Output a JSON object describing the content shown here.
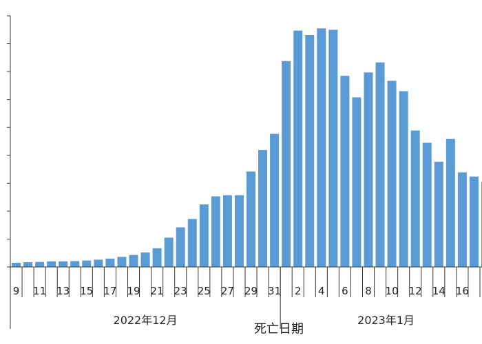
{
  "chart_data": {
    "type": "bar",
    "title": "",
    "xlabel": "死亡日期",
    "ylabel": "",
    "ylim": [
      0,
      9
    ],
    "y_gridlines": false,
    "bar_color": "#5b9bd5",
    "categories": [
      "9",
      "10",
      "11",
      "12",
      "13",
      "14",
      "15",
      "16",
      "17",
      "18",
      "19",
      "20",
      "21",
      "22",
      "23",
      "24",
      "25",
      "26",
      "27",
      "28",
      "29",
      "30",
      "31",
      "1",
      "2",
      "3",
      "4",
      "5",
      "6",
      "7",
      "8",
      "9",
      "10",
      "11",
      "12",
      "13",
      "14",
      "15",
      "16",
      "17",
      "18"
    ],
    "tick_labels": [
      "9",
      "",
      "11",
      "",
      "13",
      "",
      "15",
      "",
      "17",
      "",
      "19",
      "",
      "21",
      "",
      "23",
      "",
      "25",
      "",
      "27",
      "",
      "29",
      "",
      "31",
      "",
      "2",
      "",
      "4",
      "",
      "6",
      "",
      "8",
      "",
      "10",
      "",
      "12",
      "",
      "14",
      "",
      "16",
      ""
    ],
    "values": [
      0.15,
      0.17,
      0.18,
      0.2,
      0.2,
      0.21,
      0.23,
      0.26,
      0.3,
      0.36,
      0.43,
      0.52,
      0.67,
      1.05,
      1.42,
      1.72,
      2.24,
      2.53,
      2.57,
      2.57,
      3.42,
      4.19,
      4.77,
      7.38,
      8.47,
      8.31,
      8.55,
      8.5,
      6.85,
      6.08,
      6.97,
      7.33,
      6.67,
      6.3,
      4.89,
      4.45,
      3.77,
      4.59,
      3.39,
      3.24,
      3.05
    ],
    "months": [
      {
        "label": "2022年12月",
        "start_index": 0,
        "end_index": 22
      },
      {
        "label": "2023年1月",
        "start_index": 23,
        "end_index": 40
      }
    ]
  }
}
